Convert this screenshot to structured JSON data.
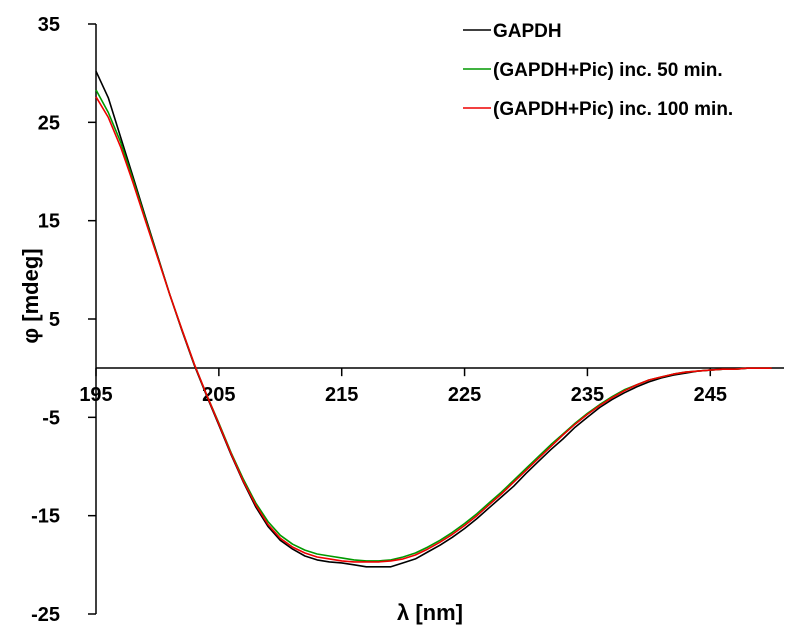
{
  "chart_data": {
    "type": "line",
    "xlabel": "λ [nm]",
    "ylabel": "φ [mdeg]",
    "xlim": [
      195,
      251
    ],
    "ylim": [
      -25,
      35
    ],
    "x_ticks": [
      195,
      205,
      215,
      225,
      235,
      245
    ],
    "x_tick_labels": [
      "195",
      "205",
      "215",
      "225",
      "235",
      "245"
    ],
    "y_ticks": [
      35,
      25,
      15,
      5,
      -5,
      -15,
      -25
    ],
    "y_tick_labels": [
      "35",
      "25",
      "15",
      "5",
      "-5",
      "-15",
      "-25"
    ],
    "legend_position": "top-right",
    "grid": false,
    "series": [
      {
        "name": "GAPDH",
        "color": "#000000",
        "x": [
          195,
          196,
          197,
          198,
          199,
          200,
          201,
          202,
          203,
          204,
          205,
          206,
          207,
          208,
          209,
          210,
          211,
          212,
          213,
          214,
          215,
          216,
          217,
          218,
          219,
          220,
          221,
          222,
          223,
          224,
          225,
          226,
          227,
          228,
          229,
          230,
          231,
          232,
          233,
          234,
          235,
          236,
          237,
          238,
          239,
          240,
          241,
          242,
          243,
          244,
          245,
          246,
          247,
          248,
          249,
          250
        ],
        "y": [
          30.2,
          27.5,
          23.5,
          19.5,
          15.5,
          11.5,
          7.5,
          3.8,
          0.3,
          -2.8,
          -5.8,
          -8.8,
          -11.6,
          -14.1,
          -16.1,
          -17.5,
          -18.4,
          -19.1,
          -19.5,
          -19.7,
          -19.8,
          -20.0,
          -20.2,
          -20.2,
          -20.2,
          -19.8,
          -19.4,
          -18.7,
          -18.0,
          -17.2,
          -16.3,
          -15.3,
          -14.2,
          -13.1,
          -12.0,
          -10.7,
          -9.5,
          -8.3,
          -7.2,
          -6.0,
          -5.0,
          -4.0,
          -3.2,
          -2.5,
          -1.9,
          -1.4,
          -1.0,
          -0.7,
          -0.5,
          -0.3,
          -0.2,
          -0.1,
          -0.1,
          0.0,
          0.0,
          0.0
        ]
      },
      {
        "name": "(GAPDH+Pic) inc. 50 min.",
        "color": "#009900",
        "x": [
          195,
          196,
          197,
          198,
          199,
          200,
          201,
          202,
          203,
          204,
          205,
          206,
          207,
          208,
          209,
          210,
          211,
          212,
          213,
          214,
          215,
          216,
          217,
          218,
          219,
          220,
          221,
          222,
          223,
          224,
          225,
          226,
          227,
          228,
          229,
          230,
          231,
          232,
          233,
          234,
          235,
          236,
          237,
          238,
          239,
          240,
          241,
          242,
          243,
          244,
          245,
          246,
          247,
          248,
          249,
          250
        ],
        "y": [
          28.3,
          26.0,
          23.0,
          19.2,
          15.3,
          11.4,
          7.5,
          3.9,
          0.4,
          -2.7,
          -5.6,
          -8.6,
          -11.3,
          -13.7,
          -15.6,
          -17.0,
          -17.9,
          -18.5,
          -18.9,
          -19.1,
          -19.3,
          -19.5,
          -19.6,
          -19.6,
          -19.5,
          -19.2,
          -18.8,
          -18.2,
          -17.5,
          -16.7,
          -15.8,
          -14.8,
          -13.7,
          -12.6,
          -11.4,
          -10.2,
          -9.0,
          -7.8,
          -6.7,
          -5.6,
          -4.6,
          -3.7,
          -2.9,
          -2.2,
          -1.7,
          -1.2,
          -0.9,
          -0.6,
          -0.4,
          -0.3,
          -0.2,
          -0.1,
          -0.1,
          0.0,
          0.0,
          0.0
        ]
      },
      {
        "name": "(GAPDH+Pic) inc. 100 min.",
        "color": "#ee0000",
        "x": [
          195,
          196,
          197,
          198,
          199,
          200,
          201,
          202,
          203,
          204,
          205,
          206,
          207,
          208,
          209,
          210,
          211,
          212,
          213,
          214,
          215,
          216,
          217,
          218,
          219,
          220,
          221,
          222,
          223,
          224,
          225,
          226,
          227,
          228,
          229,
          230,
          231,
          232,
          233,
          234,
          235,
          236,
          237,
          238,
          239,
          240,
          241,
          242,
          243,
          244,
          245,
          246,
          247,
          248,
          249,
          250
        ],
        "y": [
          27.6,
          25.5,
          22.5,
          18.9,
          15.1,
          11.3,
          7.5,
          3.9,
          0.4,
          -2.7,
          -5.7,
          -8.7,
          -11.5,
          -13.9,
          -15.9,
          -17.3,
          -18.2,
          -18.8,
          -19.2,
          -19.4,
          -19.6,
          -19.7,
          -19.7,
          -19.7,
          -19.6,
          -19.4,
          -19.0,
          -18.4,
          -17.7,
          -16.9,
          -16.0,
          -15.0,
          -13.9,
          -12.8,
          -11.6,
          -10.4,
          -9.2,
          -8.0,
          -6.8,
          -5.7,
          -4.7,
          -3.8,
          -3.0,
          -2.3,
          -1.7,
          -1.2,
          -0.9,
          -0.6,
          -0.4,
          -0.3,
          -0.2,
          -0.1,
          -0.1,
          0.0,
          0.0,
          0.0
        ]
      }
    ]
  }
}
